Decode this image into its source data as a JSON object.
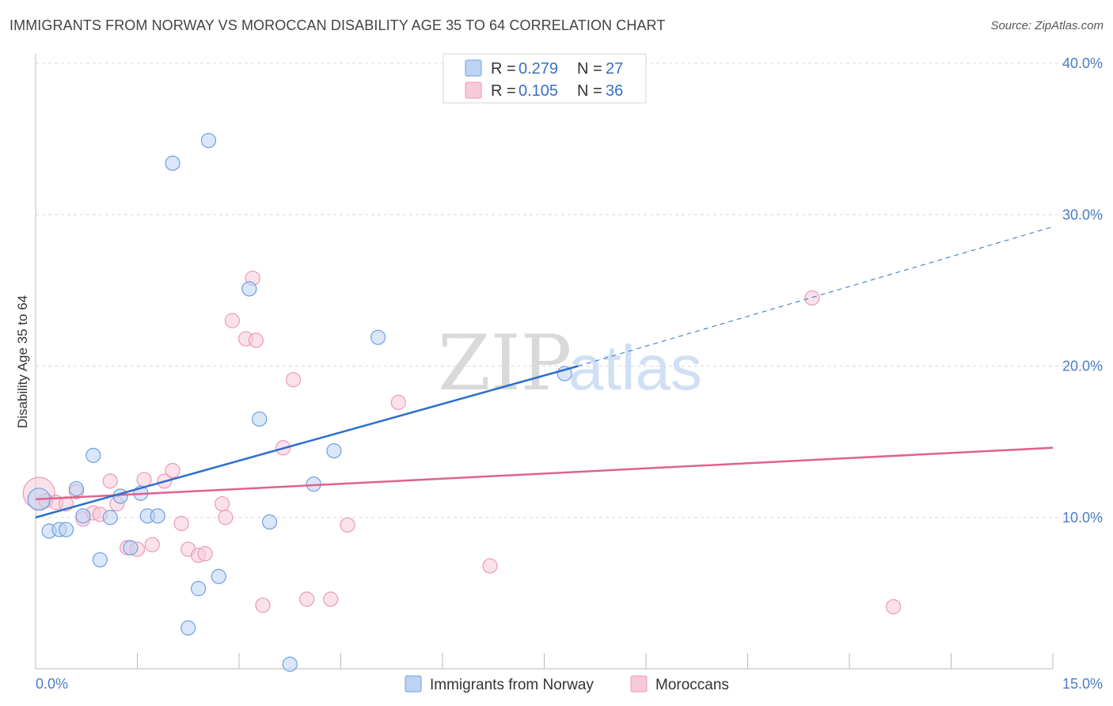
{
  "title": "IMMIGRANTS FROM NORWAY VS MOROCCAN DISABILITY AGE 35 TO 64 CORRELATION CHART",
  "source": "Source: ZipAtlas.com",
  "watermark": {
    "zip": "ZIP",
    "atlas": "atlas"
  },
  "colors": {
    "norway": "#6f9fe0",
    "norway_fill": "#bcd3f3",
    "norway_line": "#2c6fcd",
    "moroccan": "#eb9ab5",
    "moroccan_fill": "#f7cad8",
    "moroccan_line": "#e0628e",
    "tick": "#4a7cc9",
    "grid": "#d8d8d8"
  },
  "legend": {
    "rows": [
      {
        "r_label": "R = ",
        "r_value": "0.279",
        "n_label": "N = ",
        "n_value": "27"
      },
      {
        "r_label": "R = ",
        "r_value": "0.105",
        "n_label": "N = ",
        "n_value": "36"
      }
    ]
  },
  "chart_data": {
    "type": "scatter",
    "title": "IMMIGRANTS FROM NORWAY VS MOROCCAN DISABILITY AGE 35 TO 64 CORRELATION CHART",
    "xlabel": "",
    "ylabel": "Disability Age 35 to 64",
    "xlim": [
      0,
      15
    ],
    "ylim": [
      0,
      40
    ],
    "x_tick_labels": [
      "0.0%",
      "15.0%"
    ],
    "y_ticks": [
      10,
      20,
      30,
      40
    ],
    "y_tick_labels": [
      "10.0%",
      "20.0%",
      "30.0%",
      "40.0%"
    ],
    "grid": true,
    "legend_position": "top-center",
    "series": [
      {
        "name": "Immigrants from Norway",
        "color": "#6f9fe0",
        "points": [
          [
            0.05,
            11.2
          ],
          [
            0.2,
            9.1
          ],
          [
            0.35,
            9.2
          ],
          [
            0.45,
            9.2
          ],
          [
            0.6,
            11.9
          ],
          [
            0.7,
            10.1
          ],
          [
            0.85,
            14.1
          ],
          [
            0.95,
            7.2
          ],
          [
            1.1,
            10.0
          ],
          [
            1.25,
            11.4
          ],
          [
            1.4,
            8.0
          ],
          [
            1.55,
            11.6
          ],
          [
            1.65,
            10.1
          ],
          [
            1.8,
            10.1
          ],
          [
            2.02,
            33.4
          ],
          [
            2.25,
            2.7
          ],
          [
            2.4,
            5.3
          ],
          [
            2.55,
            34.9
          ],
          [
            2.7,
            6.1
          ],
          [
            3.15,
            25.1
          ],
          [
            3.3,
            16.5
          ],
          [
            3.45,
            9.7
          ],
          [
            3.75,
            0.3
          ],
          [
            4.1,
            12.2
          ],
          [
            4.4,
            14.4
          ],
          [
            5.05,
            21.9
          ],
          [
            7.8,
            19.5
          ]
        ],
        "trend": {
          "x": [
            0,
            8.0
          ],
          "y": [
            10.0,
            20.0
          ]
        }
      },
      {
        "name": "Moroccans",
        "color": "#eb9ab5",
        "points": [
          [
            0.05,
            11.6
          ],
          [
            0.15,
            11.1
          ],
          [
            0.3,
            11.0
          ],
          [
            0.45,
            10.9
          ],
          [
            0.6,
            11.7
          ],
          [
            0.7,
            9.9
          ],
          [
            0.85,
            10.3
          ],
          [
            0.95,
            10.2
          ],
          [
            1.1,
            12.4
          ],
          [
            1.2,
            10.9
          ],
          [
            1.35,
            8.0
          ],
          [
            1.5,
            7.9
          ],
          [
            1.6,
            12.5
          ],
          [
            1.72,
            8.2
          ],
          [
            1.9,
            12.4
          ],
          [
            2.02,
            13.1
          ],
          [
            2.15,
            9.6
          ],
          [
            2.25,
            7.9
          ],
          [
            2.4,
            7.5
          ],
          [
            2.5,
            7.6
          ],
          [
            2.75,
            10.9
          ],
          [
            2.8,
            10.0
          ],
          [
            2.9,
            23.0
          ],
          [
            3.1,
            21.8
          ],
          [
            3.25,
            21.7
          ],
          [
            3.2,
            25.8
          ],
          [
            3.35,
            4.2
          ],
          [
            3.65,
            14.6
          ],
          [
            3.8,
            19.1
          ],
          [
            4.0,
            4.6
          ],
          [
            4.35,
            4.6
          ],
          [
            4.6,
            9.5
          ],
          [
            5.35,
            17.6
          ],
          [
            6.7,
            6.8
          ],
          [
            11.45,
            24.5
          ],
          [
            12.65,
            4.1
          ]
        ],
        "trend": {
          "x": [
            0,
            15
          ],
          "y": [
            11.2,
            14.6
          ]
        }
      }
    ],
    "norway_trend_dashed_extension": {
      "x": [
        8.0,
        15
      ],
      "y": [
        20.0,
        29.2
      ]
    }
  },
  "bottom_legend": [
    {
      "label": "Immigrants from Norway"
    },
    {
      "label": "Moroccans"
    }
  ]
}
